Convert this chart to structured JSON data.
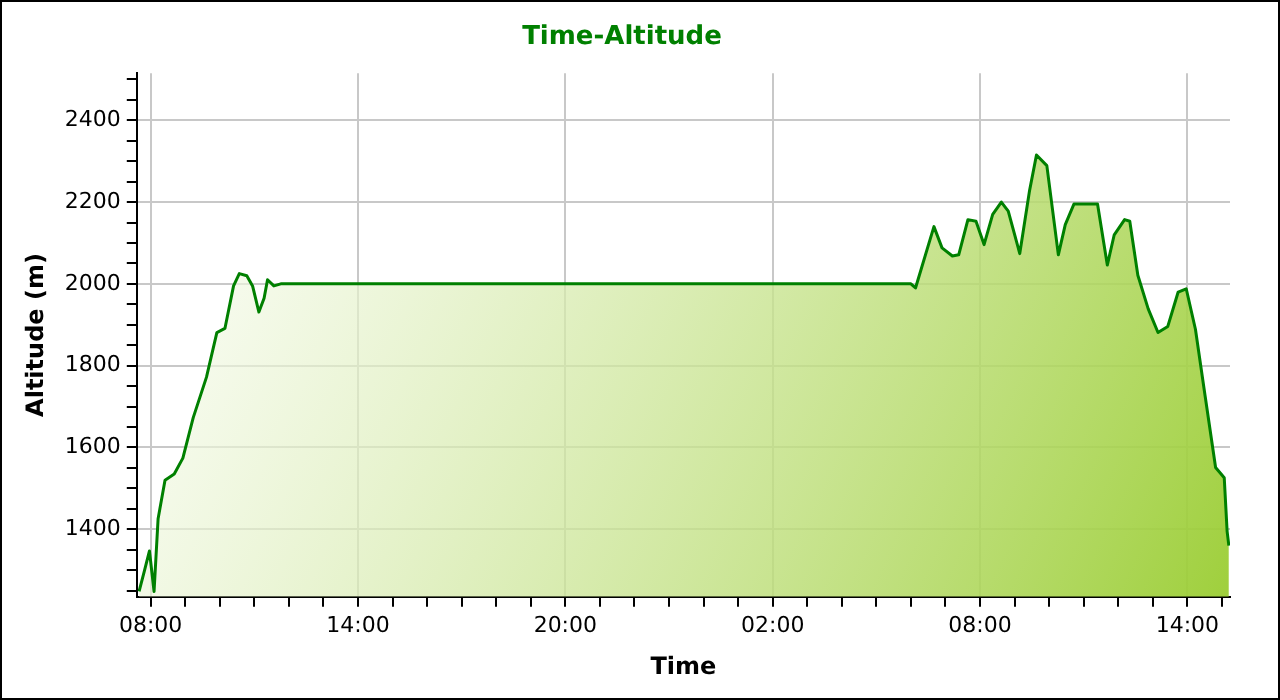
{
  "chart_data": {
    "type": "area",
    "title": "Time-Altitude",
    "xlabel": "Time",
    "ylabel": "Altitude (m)",
    "xlim": [
      "--01-01T07:36",
      "--01-02T15:14"
    ],
    "xticks": [
      {
        "value": "--01-01T08:00",
        "label": "08:00"
      },
      {
        "value": "--01-01T09:00",
        "label": null
      },
      {
        "value": "--01-01T10:00",
        "label": null
      },
      {
        "value": "--01-01T11:00",
        "label": null
      },
      {
        "value": "--01-01T12:00",
        "label": null
      },
      {
        "value": "--01-01T13:00",
        "label": null
      },
      {
        "value": "--01-01T14:00",
        "label": "14:00"
      },
      {
        "value": "--01-01T15:00",
        "label": null
      },
      {
        "value": "--01-01T16:00",
        "label": null
      },
      {
        "value": "--01-01T17:00",
        "label": null
      },
      {
        "value": "--01-01T18:00",
        "label": null
      },
      {
        "value": "--01-01T19:00",
        "label": null
      },
      {
        "value": "--01-01T20:00",
        "label": "20:00"
      },
      {
        "value": "--01-01T21:00",
        "label": null
      },
      {
        "value": "--01-01T22:00",
        "label": null
      },
      {
        "value": "--01-01T23:00",
        "label": null
      },
      {
        "value": "--01-02T00:00",
        "label": null
      },
      {
        "value": "--01-02T01:00",
        "label": null
      },
      {
        "value": "--01-02T02:00",
        "label": "02:00"
      },
      {
        "value": "--01-02T03:00",
        "label": null
      },
      {
        "value": "--01-02T04:00",
        "label": null
      },
      {
        "value": "--01-02T05:00",
        "label": null
      },
      {
        "value": "--01-02T06:00",
        "label": null
      },
      {
        "value": "--01-02T07:00",
        "label": null
      },
      {
        "value": "--01-02T08:00",
        "label": "08:00"
      },
      {
        "value": "--01-02T09:00",
        "label": null
      },
      {
        "value": "--01-02T10:00",
        "label": null
      },
      {
        "value": "--01-02T11:00",
        "label": null
      },
      {
        "value": "--01-02T12:00",
        "label": null
      },
      {
        "value": "--01-02T13:00",
        "label": null
      },
      {
        "value": "--01-02T14:00",
        "label": "14:00"
      },
      {
        "value": "--01-02T15:00",
        "label": null
      }
    ],
    "ylim": [
      1235,
      2515
    ],
    "yticks": [
      {
        "value": 1250,
        "label": null
      },
      {
        "value": 1300,
        "label": null
      },
      {
        "value": 1350,
        "label": null
      },
      1400,
      {
        "value": 1450,
        "label": null
      },
      {
        "value": 1500,
        "label": null
      },
      {
        "value": 1550,
        "label": null
      },
      1600,
      {
        "value": 1650,
        "label": null
      },
      {
        "value": 1700,
        "label": null
      },
      {
        "value": 1750,
        "label": null
      },
      1800,
      {
        "value": 1850,
        "label": null
      },
      {
        "value": 1900,
        "label": null
      },
      {
        "value": 1950,
        "label": null
      },
      2000,
      {
        "value": 2050,
        "label": null
      },
      {
        "value": 2100,
        "label": null
      },
      {
        "value": 2150,
        "label": null
      },
      2200,
      {
        "value": 2250,
        "label": null
      },
      {
        "value": 2300,
        "label": null
      },
      {
        "value": 2350,
        "label": null
      },
      2400,
      {
        "value": 2450,
        "label": null
      },
      {
        "value": 2500,
        "label": null
      }
    ],
    "grid": true,
    "legend": false,
    "marker": "none",
    "line_style": "solid",
    "series": [
      {
        "color": "#008000",
        "x": [
          "--01-01T07:40",
          "--01-01T07:49",
          "--01-01T07:58",
          "--01-01T08:06",
          "--01-01T08:13",
          "--01-01T08:25",
          "--01-01T08:41",
          "--01-01T08:56",
          "--01-01T09:14",
          "--01-01T09:37",
          "--01-01T09:55",
          "--01-01T10:09",
          "--01-01T10:24",
          "--01-01T10:34",
          "--01-01T10:47",
          "--01-01T10:57",
          "--01-01T11:08",
          "--01-01T11:17",
          "--01-01T11:23",
          "--01-01T11:34",
          "--01-01T11:46",
          "--01-01T15:00",
          "--01-01T20:00",
          "--01-02T06:00",
          "--01-02T06:08",
          "--01-02T06:40",
          "--01-02T06:54",
          "--01-02T07:12",
          "--01-02T07:23",
          "--01-02T07:39",
          "--01-02T07:53",
          "--01-02T08:07",
          "--01-02T08:22",
          "--01-02T08:37",
          "--01-02T08:49",
          "--01-02T09:09",
          "--01-02T09:26",
          "--01-02T09:38",
          "--01-02T09:56",
          "--01-02T10:16",
          "--01-02T10:28",
          "--01-02T10:43",
          "--01-02T11:24",
          "--01-02T11:41",
          "--01-02T11:53",
          "--01-02T12:11",
          "--01-02T12:20",
          "--01-02T12:34",
          "--01-02T12:52",
          "--01-02T13:09",
          "--01-02T13:26",
          "--01-02T13:44",
          "--01-02T13:58",
          "--01-02T14:14",
          "--01-02T14:31",
          "--01-02T14:49",
          "--01-02T15:04",
          "--01-02T15:09",
          "--01-02T15:12"
        ],
        "values": [
          1248,
          1297,
          1347,
          1248,
          1426,
          1520,
          1535,
          1574,
          1673,
          1772,
          1881,
          1891,
          1995,
          2025,
          2020,
          1995,
          1931,
          1965,
          2010,
          1995,
          2000,
          2000,
          2000,
          2000,
          1990,
          2140,
          2088,
          2068,
          2071,
          2157,
          2153,
          2096,
          2170,
          2200,
          2178,
          2074,
          2228,
          2315,
          2289,
          2071,
          2145,
          2195,
          2195,
          2046,
          2120,
          2157,
          2153,
          2021,
          1939,
          1881,
          1896,
          1980,
          1988,
          1889,
          1724,
          1551,
          1526,
          1395,
          1360
        ]
      }
    ]
  }
}
